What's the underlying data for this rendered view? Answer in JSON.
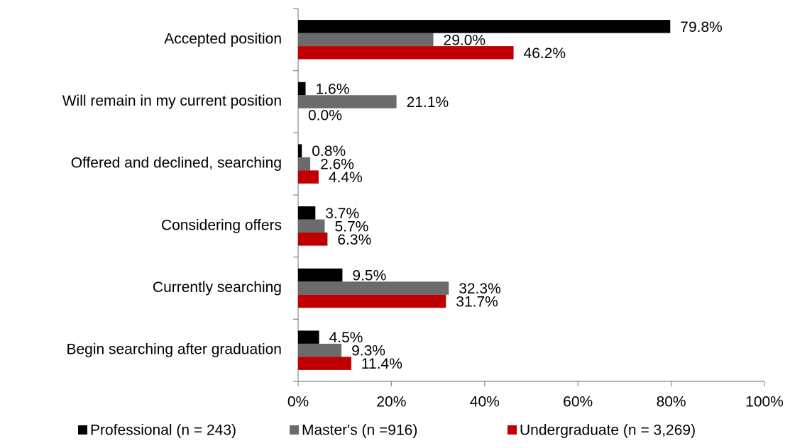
{
  "chart_data": {
    "type": "bar",
    "orientation": "horizontal",
    "categories": [
      "Accepted position",
      "Will remain in my current position",
      "Offered and declined, searching",
      "Considering offers",
      "Currently searching",
      "Begin searching after graduation"
    ],
    "series": [
      {
        "name": "Professional  (n = 243)",
        "color": "#000000",
        "values": [
          79.8,
          1.6,
          0.8,
          3.7,
          9.5,
          4.5
        ],
        "value_labels": [
          "79.8%",
          "1.6%",
          "0.8%",
          "3.7%",
          "9.5%",
          "4.5%"
        ]
      },
      {
        "name": "Master's  (n =916)",
        "color": "#6b6b6b",
        "values": [
          29.0,
          21.1,
          2.6,
          5.7,
          32.3,
          9.3
        ],
        "value_labels": [
          "29.0%",
          "21.1%",
          "2.6%",
          "5.7%",
          "32.3%",
          "9.3%"
        ]
      },
      {
        "name": "Undergraduate (n = 3,269)",
        "color": "#c00000",
        "values": [
          46.2,
          0.0,
          4.4,
          6.3,
          31.7,
          11.4
        ],
        "value_labels": [
          "46.2%",
          "0.0%",
          "4.4%",
          "6.3%",
          "31.7%",
          "11.4%"
        ]
      }
    ],
    "xlim": [
      0,
      100
    ],
    "xticks": [
      {
        "value": 0,
        "label": "0%"
      },
      {
        "value": 20,
        "label": "20%"
      },
      {
        "value": 40,
        "label": "40%"
      },
      {
        "value": 60,
        "label": "60%"
      },
      {
        "value": 80,
        "label": "80%"
      },
      {
        "value": 100,
        "label": "100%"
      }
    ],
    "legend": "bottom"
  }
}
